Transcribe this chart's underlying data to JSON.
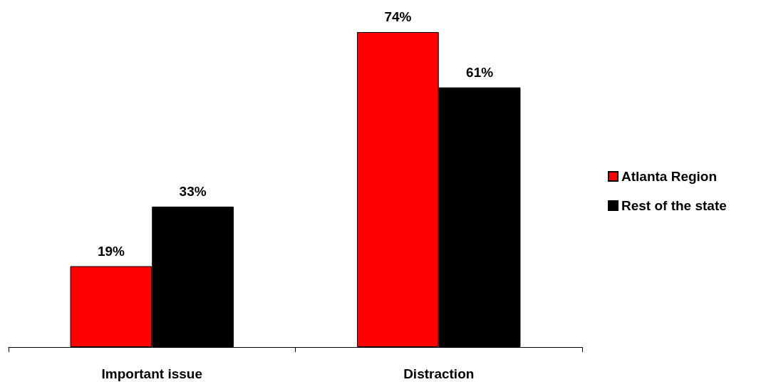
{
  "chart_data": {
    "type": "bar",
    "categories": [
      "Important issue",
      "Distraction"
    ],
    "series": [
      {
        "name": "Atlanta Region",
        "color": "#ff0000",
        "values": [
          19,
          74
        ],
        "value_labels": [
          "19%",
          "74%"
        ]
      },
      {
        "name": "Rest of the state",
        "color": "#000000",
        "values": [
          33,
          61
        ],
        "value_labels": [
          "33%",
          "61%"
        ]
      }
    ],
    "legend": "right"
  }
}
